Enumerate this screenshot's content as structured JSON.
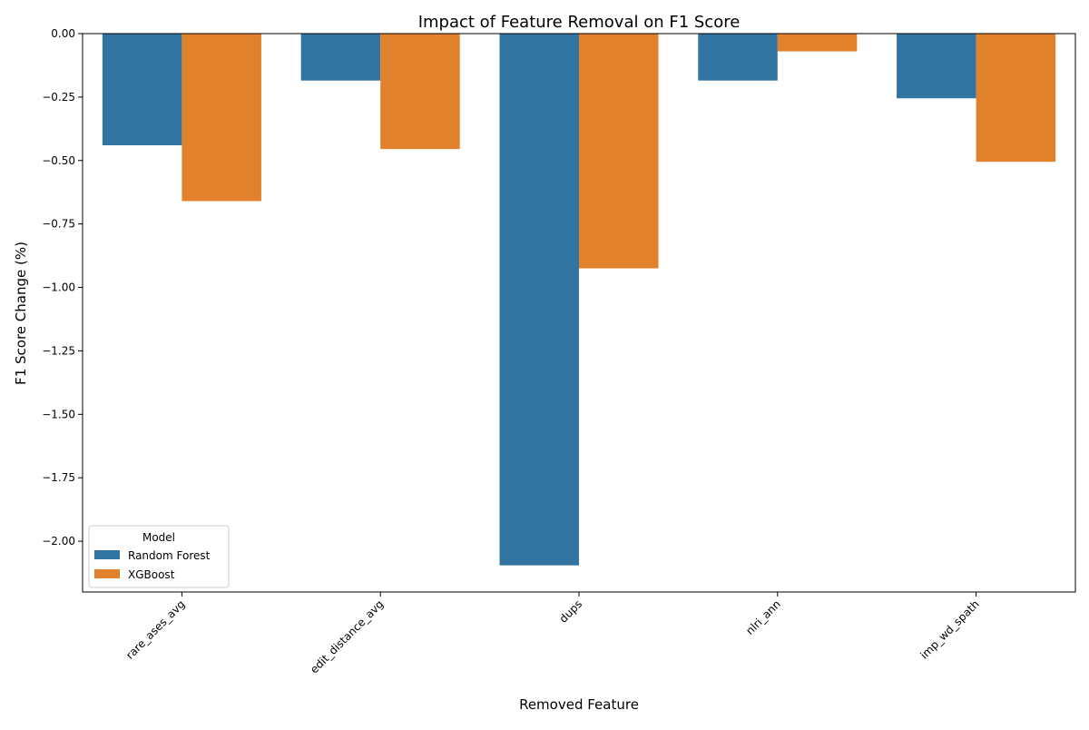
{
  "chart_data": {
    "type": "bar",
    "title": "Impact of Feature Removal on F1 Score",
    "xlabel": "Removed Feature",
    "ylabel": "F1 Score Change (%)",
    "categories": [
      "rare_ases_avg",
      "edit_distance_avg",
      "dups",
      "nlri_ann",
      "imp_wd_spath"
    ],
    "series": [
      {
        "name": "Random Forest",
        "color": "#3274a1",
        "values": [
          -0.44,
          -0.185,
          -2.095,
          -0.185,
          -0.255
        ]
      },
      {
        "name": "XGBoost",
        "color": "#e1812c",
        "values": [
          -0.66,
          -0.455,
          -0.925,
          -0.07,
          -0.505
        ]
      }
    ],
    "ylim": [
      -2.2,
      0.0
    ],
    "yticks": [
      0.0,
      -0.25,
      -0.5,
      -0.75,
      -1.0,
      -1.25,
      -1.5,
      -1.75,
      -2.0
    ],
    "ytick_labels": [
      "0.00",
      "−0.25",
      "−0.50",
      "−0.75",
      "−1.00",
      "−1.25",
      "−1.50",
      "−1.75",
      "−2.00"
    ],
    "grid": false,
    "legend": {
      "title": "Model",
      "position": "lower-left"
    }
  }
}
